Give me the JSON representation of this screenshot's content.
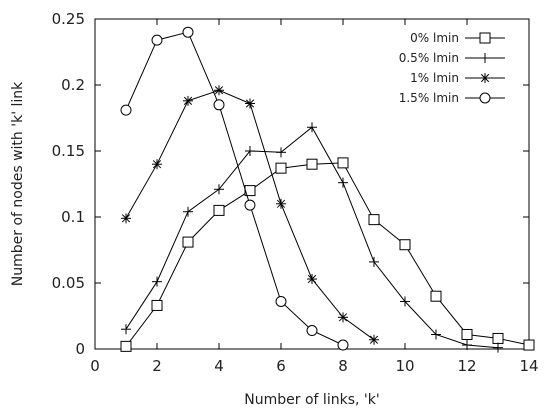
{
  "chart_data": {
    "type": "line",
    "xlabel": "Number of links, 'k'",
    "ylabel": "Number of nodes with 'k' link",
    "xlim": [
      0,
      14
    ],
    "ylim": [
      0,
      0.25
    ],
    "x_ticks": [
      "0",
      "2",
      "4",
      "6",
      "8",
      "10",
      "12",
      "14"
    ],
    "y_ticks": [
      "0",
      "0.05",
      "0.1",
      "0.15",
      "0.2",
      "0.25"
    ],
    "grid": false,
    "legend_position": "top-right",
    "series": [
      {
        "name": "0% lmin",
        "marker": "square",
        "x": [
          1,
          2,
          3,
          4,
          5,
          6,
          7,
          8,
          9,
          10,
          11,
          12,
          13,
          14
        ],
        "y": [
          0.002,
          0.033,
          0.081,
          0.105,
          0.12,
          0.137,
          0.14,
          0.141,
          0.098,
          0.079,
          0.04,
          0.011,
          0.008,
          0.003
        ]
      },
      {
        "name": "0.5% lmin",
        "marker": "plus",
        "x": [
          1,
          2,
          3,
          4,
          5,
          6,
          7,
          8,
          9,
          10,
          11,
          12,
          13
        ],
        "y": [
          0.015,
          0.051,
          0.104,
          0.121,
          0.15,
          0.149,
          0.168,
          0.126,
          0.066,
          0.036,
          0.011,
          0.003,
          0.001
        ]
      },
      {
        "name": "1% lmin",
        "marker": "asterisk",
        "x": [
          1,
          2,
          3,
          4,
          5,
          6,
          7,
          8,
          9
        ],
        "y": [
          0.099,
          0.14,
          0.188,
          0.196,
          0.186,
          0.11,
          0.053,
          0.024,
          0.007
        ]
      },
      {
        "name": "1.5% lmin",
        "marker": "circle",
        "x": [
          1,
          2,
          3,
          4,
          5,
          6,
          7,
          8
        ],
        "y": [
          0.181,
          0.234,
          0.24,
          0.185,
          0.109,
          0.036,
          0.014,
          0.003
        ]
      }
    ]
  }
}
